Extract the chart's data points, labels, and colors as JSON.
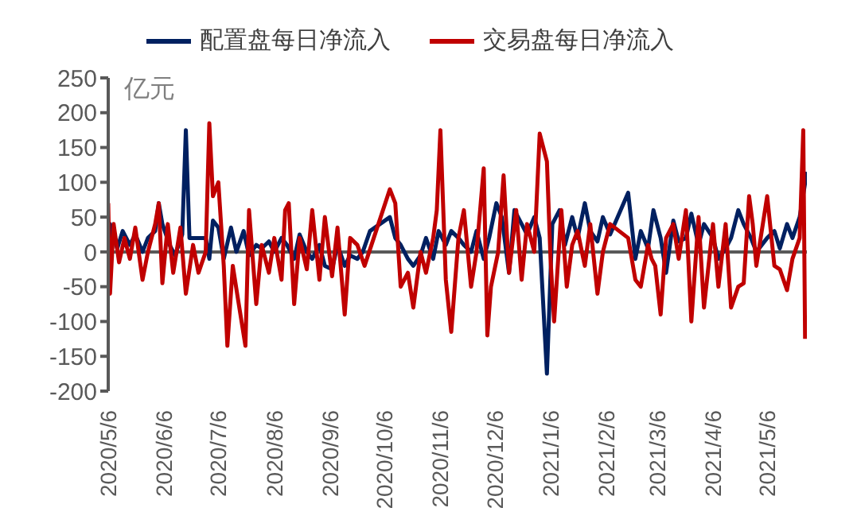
{
  "chart_data": {
    "type": "line",
    "ylabel": "亿元",
    "legend": "top",
    "grid": false,
    "marker": "none",
    "line_style": "solid",
    "xlim": [
      "2020-05-06",
      "2021-05-28"
    ],
    "xticks": [
      {
        "value": "2020-05-06",
        "label": "2020/5/6"
      },
      {
        "value": "2020-06-06",
        "label": "2020/6/6"
      },
      {
        "value": "2020-07-06",
        "label": "2020/7/6"
      },
      {
        "value": "2020-08-06",
        "label": "2020/8/6"
      },
      {
        "value": "2020-09-06",
        "label": "2020/9/6"
      },
      {
        "value": "2020-10-06",
        "label": "2020/10/6"
      },
      {
        "value": "2020-11-06",
        "label": "2020/11/6"
      },
      {
        "value": "2020-12-06",
        "label": "2020/12/6"
      },
      {
        "value": "2021-01-06",
        "label": "2021/1/6"
      },
      {
        "value": "2021-02-06",
        "label": "2021/2/6"
      },
      {
        "value": "2021-03-06",
        "label": "2021/3/6"
      },
      {
        "value": "2021-04-06",
        "label": "2021/4/6"
      },
      {
        "value": "2021-05-06",
        "label": "2021/5/6"
      }
    ],
    "ylim": [
      -200,
      250
    ],
    "yticks": [
      -200,
      -150,
      -100,
      -50,
      0,
      50,
      100,
      150,
      200,
      250
    ],
    "ref_lines": [
      {
        "axis": "y",
        "value": 0,
        "color": "#595959"
      }
    ],
    "series": [
      {
        "name": "配置盘每日净流入",
        "color": "#002060",
        "x": [
          "2020-05-06",
          "2020-05-07",
          "2020-05-11",
          "2020-05-14",
          "2020-05-18",
          "2020-05-21",
          "2020-05-25",
          "2020-05-28",
          "2020-06-01",
          "2020-06-03",
          "2020-06-05",
          "2020-06-09",
          "2020-06-12",
          "2020-06-16",
          "2020-06-18",
          "2020-06-20",
          "2020-06-24",
          "2020-06-29",
          "2020-07-01",
          "2020-07-03",
          "2020-07-06",
          "2020-07-09",
          "2020-07-13",
          "2020-07-16",
          "2020-07-20",
          "2020-07-23",
          "2020-07-27",
          "2020-07-30",
          "2020-08-03",
          "2020-08-06",
          "2020-08-10",
          "2020-08-13",
          "2020-08-17",
          "2020-08-20",
          "2020-08-24",
          "2020-08-27",
          "2020-08-31",
          "2020-09-03",
          "2020-09-07",
          "2020-09-10",
          "2020-09-14",
          "2020-09-17",
          "2020-09-21",
          "2020-09-24",
          "2020-09-28",
          "2020-10-09",
          "2020-10-12",
          "2020-10-15",
          "2020-10-19",
          "2020-10-22",
          "2020-10-26",
          "2020-10-29",
          "2020-11-02",
          "2020-11-05",
          "2020-11-09",
          "2020-11-12",
          "2020-11-16",
          "2020-11-19",
          "2020-11-23",
          "2020-11-26",
          "2020-11-30",
          "2020-12-03",
          "2020-12-07",
          "2020-12-10",
          "2020-12-14",
          "2020-12-17",
          "2020-12-21",
          "2020-12-24",
          "2020-12-28",
          "2020-12-31",
          "2021-01-04",
          "2021-01-07",
          "2021-01-11",
          "2021-01-14",
          "2021-01-18",
          "2021-01-21",
          "2021-01-25",
          "2021-01-28",
          "2021-02-01",
          "2021-02-04",
          "2021-02-08",
          "2021-02-18",
          "2021-02-22",
          "2021-02-25",
          "2021-03-01",
          "2021-03-04",
          "2021-03-08",
          "2021-03-11",
          "2021-03-15",
          "2021-03-18",
          "2021-03-22",
          "2021-03-25",
          "2021-03-29",
          "2021-04-01",
          "2021-04-06",
          "2021-04-09",
          "2021-04-13",
          "2021-04-16",
          "2021-04-20",
          "2021-04-23",
          "2021-04-27",
          "2021-04-30",
          "2021-05-06",
          "2021-05-10",
          "2021-05-13",
          "2021-05-17",
          "2021-05-20",
          "2021-05-24",
          "2021-05-28"
        ],
        "values": [
          -60,
          40,
          5,
          30,
          10,
          25,
          0,
          20,
          30,
          70,
          40,
          10,
          -5,
          25,
          175,
          20,
          20,
          20,
          -10,
          45,
          35,
          -10,
          35,
          0,
          30,
          -5,
          10,
          5,
          15,
          0,
          20,
          10,
          -10,
          25,
          0,
          -10,
          10,
          -20,
          -25,
          10,
          -20,
          -5,
          -10,
          0,
          30,
          50,
          20,
          10,
          -10,
          -20,
          -5,
          20,
          -10,
          30,
          10,
          30,
          20,
          10,
          0,
          30,
          -10,
          20,
          70,
          50,
          -30,
          60,
          40,
          25,
          50,
          20,
          -175,
          40,
          60,
          10,
          50,
          20,
          70,
          30,
          15,
          50,
          25,
          85,
          -10,
          30,
          5,
          60,
          20,
          -30,
          45,
          15,
          20,
          55,
          10,
          40,
          20,
          -10,
          5,
          20,
          60,
          40,
          20,
          0,
          20,
          30,
          5,
          40,
          20,
          50,
          115
        ]
      },
      {
        "name": "交易盘每日净流入",
        "color": "#c00000",
        "x": [
          "2020-05-06",
          "2020-05-07",
          "2020-05-09",
          "2020-05-12",
          "2020-05-15",
          "2020-05-18",
          "2020-05-21",
          "2020-05-25",
          "2020-05-28",
          "2020-06-01",
          "2020-06-03",
          "2020-06-05",
          "2020-06-08",
          "2020-06-11",
          "2020-06-15",
          "2020-06-18",
          "2020-06-22",
          "2020-06-25",
          "2020-06-29",
          "2020-07-01",
          "2020-07-03",
          "2020-07-06",
          "2020-07-09",
          "2020-07-11",
          "2020-07-14",
          "2020-07-17",
          "2020-07-21",
          "2020-07-23",
          "2020-07-27",
          "2020-07-30",
          "2020-08-03",
          "2020-08-06",
          "2020-08-10",
          "2020-08-12",
          "2020-08-14",
          "2020-08-17",
          "2020-08-20",
          "2020-08-24",
          "2020-08-27",
          "2020-08-31",
          "2020-09-03",
          "2020-09-07",
          "2020-09-10",
          "2020-09-14",
          "2020-09-17",
          "2020-09-21",
          "2020-09-25",
          "2020-10-09",
          "2020-10-12",
          "2020-10-15",
          "2020-10-19",
          "2020-10-22",
          "2020-10-26",
          "2020-10-29",
          "2020-11-02",
          "2020-11-04",
          "2020-11-06",
          "2020-11-09",
          "2020-11-12",
          "2020-11-16",
          "2020-11-19",
          "2020-11-23",
          "2020-11-26",
          "2020-11-30",
          "2020-12-02",
          "2020-12-04",
          "2020-12-08",
          "2020-12-11",
          "2020-12-14",
          "2020-12-18",
          "2020-12-21",
          "2020-12-24",
          "2020-12-28",
          "2020-12-31",
          "2021-01-04",
          "2021-01-06",
          "2021-01-08",
          "2021-01-12",
          "2021-01-15",
          "2021-01-18",
          "2021-01-21",
          "2021-01-25",
          "2021-01-28",
          "2021-02-01",
          "2021-02-04",
          "2021-02-08",
          "2021-02-18",
          "2021-02-22",
          "2021-02-25",
          "2021-03-01",
          "2021-03-03",
          "2021-03-05",
          "2021-03-08",
          "2021-03-11",
          "2021-03-15",
          "2021-03-18",
          "2021-03-22",
          "2021-03-25",
          "2021-03-29",
          "2021-04-01",
          "2021-04-06",
          "2021-04-09",
          "2021-04-13",
          "2021-04-16",
          "2021-04-20",
          "2021-04-23",
          "2021-04-26",
          "2021-04-28",
          "2021-04-30",
          "2021-05-06",
          "2021-05-10",
          "2021-05-13",
          "2021-05-17",
          "2021-05-20",
          "2021-05-24",
          "2021-05-26",
          "2021-05-27"
        ],
        "values": [
          70,
          -60,
          40,
          -15,
          20,
          -10,
          35,
          -40,
          0,
          40,
          70,
          -45,
          40,
          -30,
          35,
          -60,
          10,
          -30,
          0,
          185,
          80,
          100,
          -20,
          -135,
          -20,
          -70,
          -135,
          60,
          -75,
          10,
          -30,
          20,
          -40,
          60,
          70,
          -75,
          20,
          -25,
          60,
          -40,
          50,
          -35,
          35,
          -90,
          20,
          10,
          -20,
          90,
          70,
          -50,
          -30,
          -80,
          0,
          -30,
          20,
          60,
          175,
          -40,
          -115,
          20,
          60,
          -50,
          0,
          120,
          -120,
          -50,
          0,
          110,
          -30,
          60,
          -40,
          40,
          0,
          170,
          130,
          -10,
          -100,
          60,
          -50,
          10,
          30,
          -20,
          40,
          -60,
          0,
          40,
          20,
          -40,
          -50,
          10,
          -10,
          -20,
          -90,
          20,
          40,
          -10,
          60,
          -100,
          50,
          -80,
          40,
          -50,
          40,
          -80,
          -50,
          -45,
          80,
          40,
          -20,
          80,
          -20,
          -25,
          -55,
          -10,
          20,
          175,
          -125
        ]
      }
    ]
  }
}
